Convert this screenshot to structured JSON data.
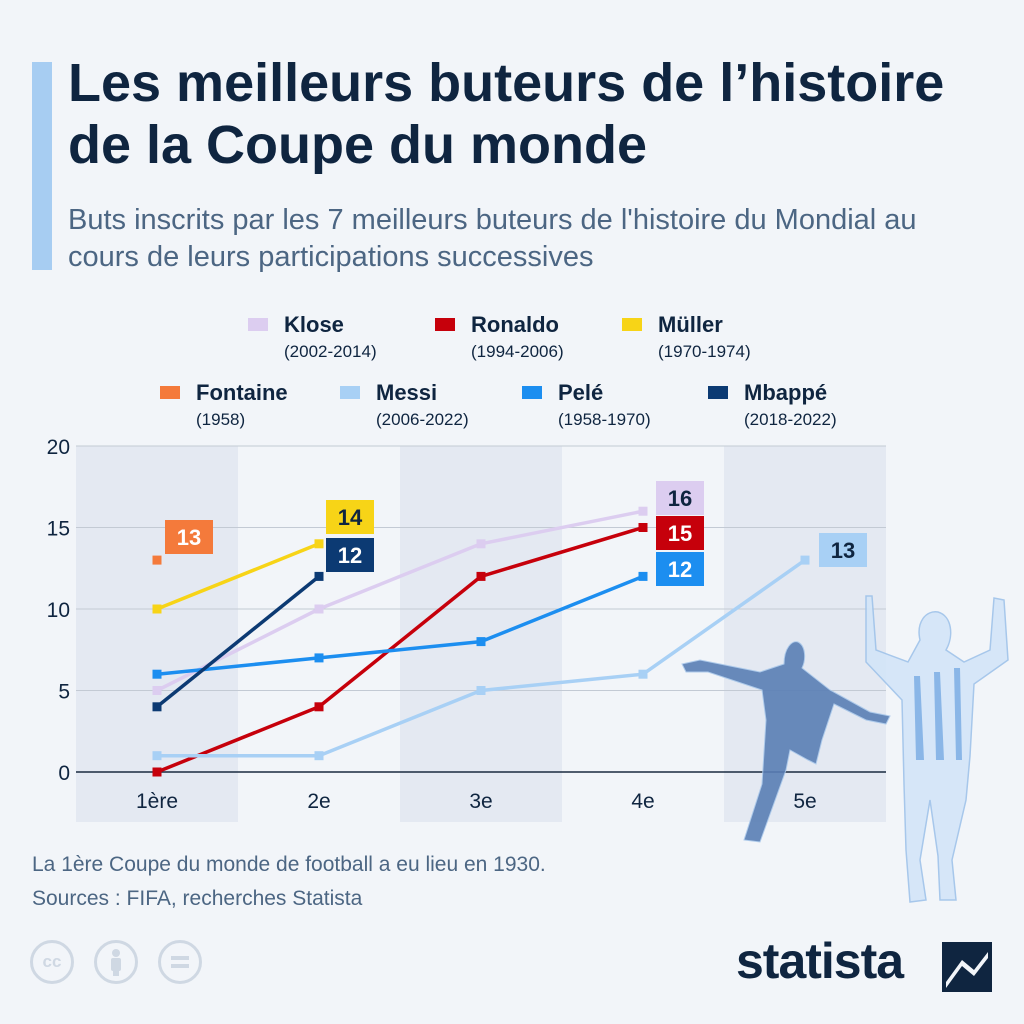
{
  "title": "Les meilleurs buteurs de l’histoire de la Coupe du monde",
  "subtitle": "Buts inscrits par les 7 meilleurs buteurs de l'histoire du Mondial au cours de leurs participations successives",
  "footnote": {
    "line1": "La 1ère Coupe du monde de football a eu lieu en 1930.",
    "line2": "Sources : FIFA, recherches Statista"
  },
  "logo": {
    "text": "statista"
  },
  "license_icons": [
    "cc-icon",
    "attribution-icon",
    "no-derivatives-icon"
  ],
  "chart_data": {
    "type": "line",
    "title": "",
    "xlabel": "",
    "ylabel": "",
    "categories": [
      "1ère",
      "2e",
      "3e",
      "4e",
      "5e"
    ],
    "ylim": [
      0,
      20
    ],
    "yticks": [
      0,
      5,
      10,
      15,
      20
    ],
    "grid": true,
    "legend_position": "top",
    "series": [
      {
        "name": "Klose",
        "years": "(2002-2014)",
        "color": "#dccdf0",
        "values": [
          5,
          10,
          14,
          16,
          null
        ],
        "final": 16
      },
      {
        "name": "Ronaldo",
        "years": "(1994-2006)",
        "color": "#c6000b",
        "values": [
          0,
          4,
          12,
          15,
          null
        ],
        "final": 15
      },
      {
        "name": "Müller",
        "years": "(1970-1974)",
        "color": "#f7d417",
        "values": [
          10,
          14,
          null,
          null,
          null
        ],
        "final": 14
      },
      {
        "name": "Fontaine",
        "years": "(1958)",
        "color": "#f47a3b",
        "values": [
          13,
          null,
          null,
          null,
          null
        ],
        "final": 13
      },
      {
        "name": "Messi",
        "years": "(2006-2022)",
        "color": "#a8d0f5",
        "values": [
          1,
          1,
          5,
          6,
          13
        ],
        "final": 13
      },
      {
        "name": "Pelé",
        "years": "(1958-1970)",
        "color": "#1c8ef0",
        "values": [
          6,
          7,
          8,
          12,
          null
        ],
        "final": 12
      },
      {
        "name": "Mbappé",
        "years": "(2018-2022)",
        "color": "#0c3a73",
        "values": [
          4,
          12,
          null,
          null,
          null
        ],
        "final": 12
      }
    ]
  }
}
